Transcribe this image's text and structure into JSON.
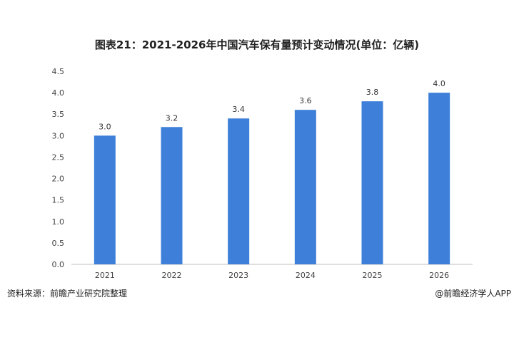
{
  "chart_data": {
    "type": "bar",
    "title": "图表21：2021-2026年中国汽车保有量预计变动情况(单位：亿辆)",
    "categories": [
      "2021",
      "2022",
      "2023",
      "2024",
      "2025",
      "2026"
    ],
    "values": [
      3.0,
      3.2,
      3.4,
      3.6,
      3.8,
      4.0
    ],
    "data_labels": [
      "3.0",
      "3.2",
      "3.4",
      "3.6",
      "3.8",
      "4.0"
    ],
    "y_ticks": [
      "0.0",
      "0.5",
      "1.0",
      "1.5",
      "2.0",
      "2.5",
      "3.0",
      "3.5",
      "4.0",
      "4.5"
    ],
    "ylim": [
      0,
      4.5
    ],
    "xlabel": "",
    "ylabel": "",
    "grid": false,
    "legend": "none",
    "bar_color": "#3d7fd9"
  },
  "footer": {
    "source": "资料来源：前瞻产业研究院整理",
    "credit": "@前瞻经济学人APP"
  }
}
